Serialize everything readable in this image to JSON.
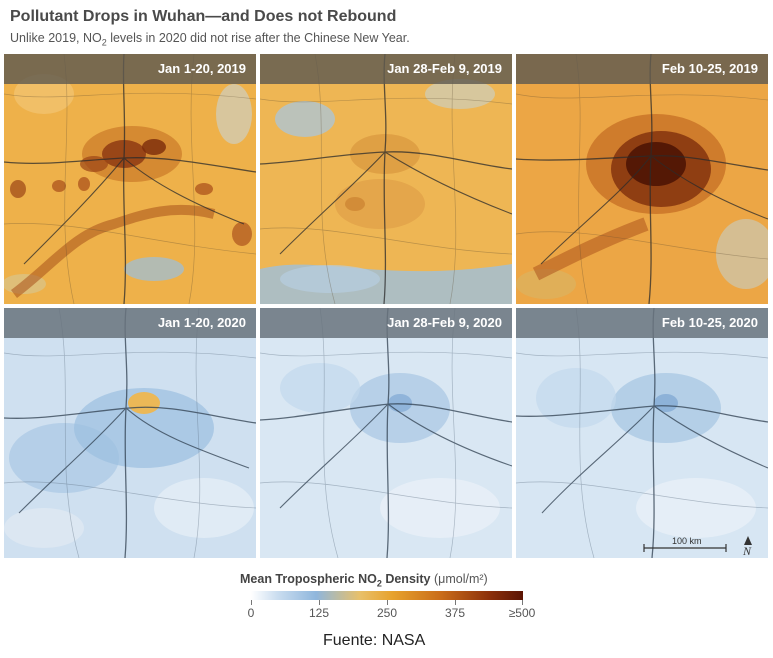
{
  "title": "Pollutant Drops in Wuhan—and Does not Rebound",
  "subtitle": {
    "before": "Unlike 2019, NO",
    "sub": "2",
    "after": " levels in 2020 did not rise after the Chinese New Year."
  },
  "panels": [
    {
      "label": "Jan 1-20, 2019",
      "year": 2019,
      "level": "high"
    },
    {
      "label": "Jan 28-Feb 9, 2019",
      "year": 2019,
      "level": "medium"
    },
    {
      "label": "Feb 10-25, 2019",
      "year": 2019,
      "level": "very-high"
    },
    {
      "label": "Jan 1-20, 2020",
      "year": 2020,
      "level": "medium-low"
    },
    {
      "label": "Jan 28-Feb 9, 2020",
      "year": 2020,
      "level": "low"
    },
    {
      "label": "Feb 10-25, 2020",
      "year": 2020,
      "level": "low"
    }
  ],
  "scale_bar": {
    "label": "100 km"
  },
  "north_arrow": {
    "label": "N",
    "icon": "north-arrow-icon"
  },
  "legend": {
    "title_before": "Mean Tropospheric NO",
    "title_sub": "2",
    "title_after": " Density",
    "unit": "(μmol/m²)",
    "ticks": [
      "0",
      "125",
      "250",
      "375",
      "≥500"
    ],
    "colors": [
      "#ffffff",
      "#8fb6dc",
      "#e7a22d",
      "#c96c1a",
      "#5b1404"
    ]
  },
  "source": "Fuente: NASA"
}
